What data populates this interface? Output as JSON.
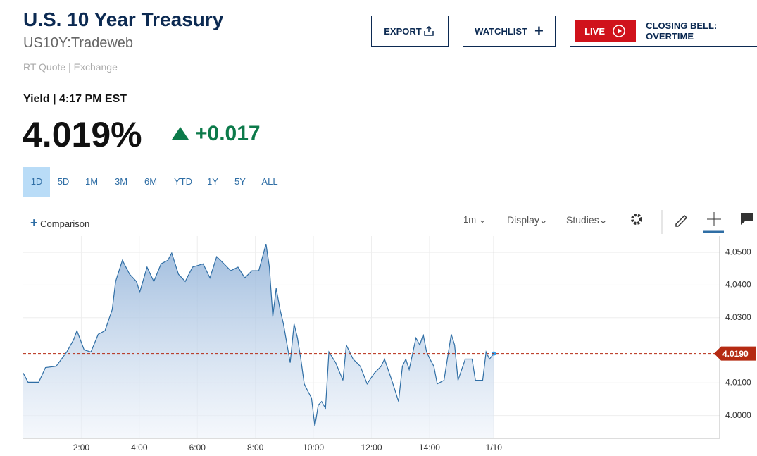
{
  "header": {
    "title": "U.S. 10 Year Treasury",
    "symbol": "US10Y:Tradeweb",
    "quote_type": "RT Quote | Exchange",
    "yield_time": "Yield | 4:17 PM EST",
    "price": "4.019%",
    "change": "+0.017"
  },
  "buttons": {
    "export": "EXPORT",
    "watchlist": "WATCHLIST",
    "live": "LIVE",
    "live_show": "CLOSING BELL: OVERTIME"
  },
  "ranges": [
    "1D",
    "5D",
    "1M",
    "3M",
    "6M",
    "YTD",
    "1Y",
    "5Y",
    "ALL"
  ],
  "active_range": "1D",
  "toolbar": {
    "comparison": "Comparison",
    "interval": "1m",
    "display": "Display",
    "studies": "Studies"
  },
  "chart_data": {
    "type": "area",
    "color": "#2f6ea5",
    "grid": true,
    "x": [
      0,
      10,
      32,
      46,
      68,
      90,
      104,
      111,
      126,
      140,
      155,
      169,
      184,
      191,
      205,
      220,
      234,
      241,
      256,
      270,
      285,
      299,
      307,
      321,
      335,
      350,
      372,
      386,
      400,
      415,
      429,
      444,
      458,
      473,
      487,
      502,
      509,
      516,
      523,
      531,
      538,
      552,
      560,
      567,
      574,
      581,
      588,
      596,
      603,
      610,
      617,
      625,
      632,
      646,
      661,
      668,
      682,
      697,
      711,
      726,
      740,
      747,
      762,
      769,
      776,
      784,
      791,
      798,
      812,
      820,
      827,
      834,
      841,
      849,
      856,
      870,
      885,
      892,
      899,
      914,
      928,
      935,
      950,
      957,
      964,
      973
    ],
    "values": [
      4.013,
      4.0102,
      4.0102,
      4.0147,
      4.0151,
      4.0195,
      4.0232,
      4.026,
      4.0201,
      4.0195,
      4.0249,
      4.026,
      4.0325,
      4.0411,
      4.0476,
      4.0433,
      4.0411,
      4.0379,
      4.0455,
      4.0411,
      4.0465,
      4.0476,
      4.0498,
      4.0433,
      4.0411,
      4.0455,
      4.0465,
      4.0422,
      4.0487,
      4.0465,
      4.0444,
      4.0455,
      4.0422,
      4.0444,
      4.0444,
      4.0526,
      4.0455,
      4.0303,
      4.039,
      4.0325,
      4.0281,
      4.0162,
      4.0281,
      4.0238,
      4.0173,
      4.0097,
      4.0076,
      4.0054,
      3.9967,
      4.0032,
      4.0043,
      4.0022,
      4.0195,
      4.0162,
      4.0108,
      4.0216,
      4.0173,
      4.0151,
      4.0097,
      4.013,
      4.0151,
      4.0173,
      4.0108,
      4.0076,
      4.0043,
      4.0151,
      4.0173,
      4.0141,
      4.0238,
      4.0216,
      4.0249,
      4.0195,
      4.0173,
      4.0151,
      4.0097,
      4.0108,
      4.0249,
      4.0216,
      4.0108,
      4.0173,
      4.0173,
      4.0108,
      4.0108,
      4.0195,
      4.0173,
      4.019
    ],
    "xlim": [
      0,
      1440
    ],
    "xticks": [
      {
        "value": 120,
        "label": "2:00"
      },
      {
        "value": 240,
        "label": "4:00"
      },
      {
        "value": 360,
        "label": "6:00"
      },
      {
        "value": 480,
        "label": "8:00"
      },
      {
        "value": 600,
        "label": "10:00"
      },
      {
        "value": 720,
        "label": "12:00"
      },
      {
        "value": 840,
        "label": "14:00"
      },
      {
        "value": 973,
        "label": "1/10"
      }
    ],
    "ylim": [
      3.993,
      4.055
    ],
    "yticks": [
      {
        "value": 4.0,
        "label": "4.0000"
      },
      {
        "value": 4.01,
        "label": "4.0100"
      },
      {
        "value": 4.03,
        "label": "4.0300"
      },
      {
        "value": 4.04,
        "label": "4.0400"
      },
      {
        "value": 4.05,
        "label": "4.0500"
      }
    ],
    "reference_line": {
      "value": 4.019,
      "label": "4.0190",
      "color": "#b52a12"
    }
  }
}
